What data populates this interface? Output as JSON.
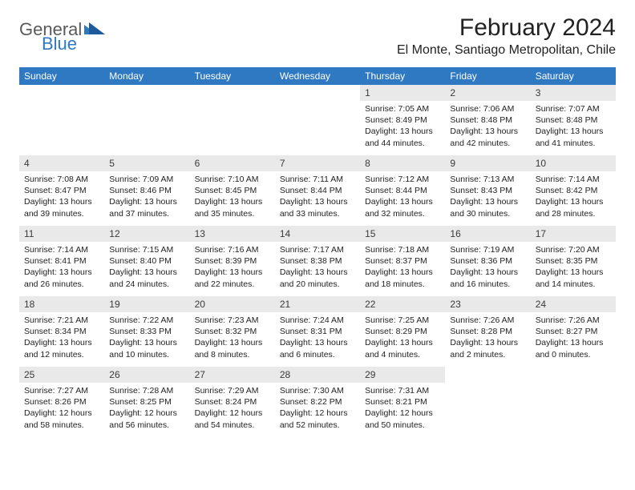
{
  "brand": {
    "general": "General",
    "blue": "Blue"
  },
  "header": {
    "month_title": "February 2024",
    "location": "El Monte, Santiago Metropolitan, Chile"
  },
  "colors": {
    "header_bg": "#2f78c2",
    "header_fg": "#ffffff",
    "daynum_bg": "#e9e9e9",
    "page_bg": "#ffffff",
    "text": "#1a1a1a"
  },
  "weekdays": [
    "Sunday",
    "Monday",
    "Tuesday",
    "Wednesday",
    "Thursday",
    "Friday",
    "Saturday"
  ],
  "first_day_column": 4,
  "days": [
    {
      "n": 1,
      "sunrise": "7:05 AM",
      "sunset": "8:49 PM",
      "daylight": "13 hours and 44 minutes."
    },
    {
      "n": 2,
      "sunrise": "7:06 AM",
      "sunset": "8:48 PM",
      "daylight": "13 hours and 42 minutes."
    },
    {
      "n": 3,
      "sunrise": "7:07 AM",
      "sunset": "8:48 PM",
      "daylight": "13 hours and 41 minutes."
    },
    {
      "n": 4,
      "sunrise": "7:08 AM",
      "sunset": "8:47 PM",
      "daylight": "13 hours and 39 minutes."
    },
    {
      "n": 5,
      "sunrise": "7:09 AM",
      "sunset": "8:46 PM",
      "daylight": "13 hours and 37 minutes."
    },
    {
      "n": 6,
      "sunrise": "7:10 AM",
      "sunset": "8:45 PM",
      "daylight": "13 hours and 35 minutes."
    },
    {
      "n": 7,
      "sunrise": "7:11 AM",
      "sunset": "8:44 PM",
      "daylight": "13 hours and 33 minutes."
    },
    {
      "n": 8,
      "sunrise": "7:12 AM",
      "sunset": "8:44 PM",
      "daylight": "13 hours and 32 minutes."
    },
    {
      "n": 9,
      "sunrise": "7:13 AM",
      "sunset": "8:43 PM",
      "daylight": "13 hours and 30 minutes."
    },
    {
      "n": 10,
      "sunrise": "7:14 AM",
      "sunset": "8:42 PM",
      "daylight": "13 hours and 28 minutes."
    },
    {
      "n": 11,
      "sunrise": "7:14 AM",
      "sunset": "8:41 PM",
      "daylight": "13 hours and 26 minutes."
    },
    {
      "n": 12,
      "sunrise": "7:15 AM",
      "sunset": "8:40 PM",
      "daylight": "13 hours and 24 minutes."
    },
    {
      "n": 13,
      "sunrise": "7:16 AM",
      "sunset": "8:39 PM",
      "daylight": "13 hours and 22 minutes."
    },
    {
      "n": 14,
      "sunrise": "7:17 AM",
      "sunset": "8:38 PM",
      "daylight": "13 hours and 20 minutes."
    },
    {
      "n": 15,
      "sunrise": "7:18 AM",
      "sunset": "8:37 PM",
      "daylight": "13 hours and 18 minutes."
    },
    {
      "n": 16,
      "sunrise": "7:19 AM",
      "sunset": "8:36 PM",
      "daylight": "13 hours and 16 minutes."
    },
    {
      "n": 17,
      "sunrise": "7:20 AM",
      "sunset": "8:35 PM",
      "daylight": "13 hours and 14 minutes."
    },
    {
      "n": 18,
      "sunrise": "7:21 AM",
      "sunset": "8:34 PM",
      "daylight": "13 hours and 12 minutes."
    },
    {
      "n": 19,
      "sunrise": "7:22 AM",
      "sunset": "8:33 PM",
      "daylight": "13 hours and 10 minutes."
    },
    {
      "n": 20,
      "sunrise": "7:23 AM",
      "sunset": "8:32 PM",
      "daylight": "13 hours and 8 minutes."
    },
    {
      "n": 21,
      "sunrise": "7:24 AM",
      "sunset": "8:31 PM",
      "daylight": "13 hours and 6 minutes."
    },
    {
      "n": 22,
      "sunrise": "7:25 AM",
      "sunset": "8:29 PM",
      "daylight": "13 hours and 4 minutes."
    },
    {
      "n": 23,
      "sunrise": "7:26 AM",
      "sunset": "8:28 PM",
      "daylight": "13 hours and 2 minutes."
    },
    {
      "n": 24,
      "sunrise": "7:26 AM",
      "sunset": "8:27 PM",
      "daylight": "13 hours and 0 minutes."
    },
    {
      "n": 25,
      "sunrise": "7:27 AM",
      "sunset": "8:26 PM",
      "daylight": "12 hours and 58 minutes."
    },
    {
      "n": 26,
      "sunrise": "7:28 AM",
      "sunset": "8:25 PM",
      "daylight": "12 hours and 56 minutes."
    },
    {
      "n": 27,
      "sunrise": "7:29 AM",
      "sunset": "8:24 PM",
      "daylight": "12 hours and 54 minutes."
    },
    {
      "n": 28,
      "sunrise": "7:30 AM",
      "sunset": "8:22 PM",
      "daylight": "12 hours and 52 minutes."
    },
    {
      "n": 29,
      "sunrise": "7:31 AM",
      "sunset": "8:21 PM",
      "daylight": "12 hours and 50 minutes."
    }
  ],
  "labels": {
    "sunrise_prefix": "Sunrise: ",
    "sunset_prefix": "Sunset: ",
    "daylight_prefix": "Daylight: "
  }
}
